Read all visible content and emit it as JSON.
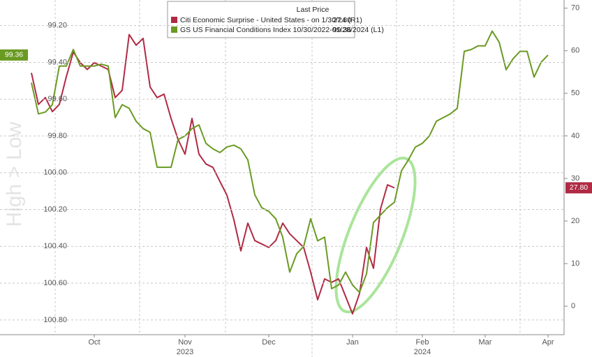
{
  "chart_data": {
    "type": "line",
    "watermark": "High > Low",
    "legend_title": "Last Price",
    "categories": [
      null,
      null,
      null,
      null,
      null,
      null,
      null,
      null,
      null,
      "Oct",
      null,
      null,
      null,
      null,
      null,
      null,
      null,
      null,
      null,
      null,
      null,
      null,
      "Nov",
      null,
      null,
      null,
      null,
      null,
      null,
      null,
      null,
      null,
      null,
      null,
      "Dec",
      null,
      null,
      null,
      null,
      null,
      null,
      null,
      null,
      null,
      null,
      null,
      "Jan",
      null,
      null,
      null,
      null,
      null,
      null,
      null,
      null,
      null,
      "Feb",
      null,
      null,
      null,
      null,
      null,
      null,
      null,
      null,
      "Mar",
      null,
      null,
      null,
      null,
      null,
      null,
      null,
      null,
      "Apr"
    ],
    "x_years": [
      null,
      null,
      null,
      null,
      null,
      null,
      null,
      null,
      null,
      null,
      null,
      null,
      null,
      null,
      null,
      null,
      null,
      null,
      null,
      null,
      null,
      null,
      "2023",
      null,
      null,
      null,
      null,
      null,
      null,
      null,
      null,
      null,
      null,
      null,
      null,
      null,
      null,
      null,
      null,
      null,
      null,
      null,
      null,
      null,
      null,
      null,
      null,
      null,
      null,
      null,
      null,
      null,
      null,
      null,
      null,
      null,
      "2024",
      null,
      null,
      null,
      null,
      null,
      null,
      null,
      null,
      null,
      null,
      null,
      null,
      null,
      null,
      null,
      null,
      null,
      null
    ],
    "ylim": [
      99.08,
      100.88
    ],
    "y_inverted": true,
    "yticks": [
      {
        "value": 99.2,
        "label": "99.20"
      },
      {
        "value": 99.4,
        "label": "99.40"
      },
      {
        "value": 99.6,
        "label": "99.60"
      },
      {
        "value": 99.8,
        "label": "99.80"
      },
      {
        "value": 100,
        "label": "100.00"
      },
      {
        "value": 100.2,
        "label": "100.20"
      },
      {
        "value": 100.4,
        "label": "100.40"
      },
      {
        "value": 100.6,
        "label": "100.60"
      },
      {
        "value": 100.8,
        "label": "100.80"
      }
    ],
    "y2lim": [
      -6.7,
      71.1
    ],
    "y2ticks": [
      0,
      10,
      20,
      30,
      40,
      50,
      60,
      70
    ],
    "grid": true,
    "series": [
      {
        "name": "Citi Economic Surprise - United States - on 1/30/24 (R1)",
        "last_value_label": "27.80",
        "color": "#b02a44",
        "axis": "y2",
        "values": [
          54.8,
          47.4,
          49,
          45.7,
          47.4,
          53.9,
          59.7,
          57.2,
          55.6,
          57.2,
          56.4,
          55.6,
          49,
          50.7,
          63.8,
          61.3,
          62.9,
          51.5,
          49,
          49.8,
          44.1,
          39.2,
          35.7,
          44.1,
          35.7,
          33.4,
          32.6,
          29.3,
          26.1,
          20.3,
          13,
          19.5,
          15.4,
          14.6,
          13.8,
          15.4,
          19.5,
          17,
          15.4,
          13.8,
          8,
          1.5,
          6.4,
          5.6,
          6.4,
          2.3,
          -1.8,
          3,
          13.8,
          8.9,
          22.8,
          28.5,
          27.8,
          null,
          null,
          null,
          null,
          null,
          null,
          null,
          null,
          null,
          null,
          null,
          null,
          null,
          null,
          null,
          null,
          null,
          null,
          null,
          null,
          null,
          null
        ]
      },
      {
        "name": "GS US Financial Conditions Index 10/30/2022-01/28/2024 (L1)",
        "last_value_label": "99.36",
        "color": "#6a9a22",
        "axis": "y",
        "values": [
          99.51,
          99.68,
          99.67,
          99.63,
          99.42,
          99.42,
          99.33,
          99.42,
          99.42,
          99.42,
          99.41,
          99.42,
          99.7,
          99.63,
          99.65,
          99.72,
          99.76,
          99.78,
          99.97,
          99.97,
          99.97,
          99.82,
          99.8,
          99.76,
          99.74,
          99.84,
          99.87,
          99.89,
          99.86,
          99.85,
          99.87,
          99.93,
          100.12,
          100.19,
          100.21,
          100.25,
          100.35,
          100.54,
          100.44,
          100.4,
          100.25,
          100.37,
          100.35,
          100.63,
          100.61,
          100.54,
          100.61,
          100.65,
          100.55,
          100.27,
          100.23,
          100.19,
          100.16,
          99.99,
          99.93,
          99.86,
          99.84,
          99.8,
          99.72,
          99.7,
          99.68,
          99.65,
          99.34,
          99.33,
          99.31,
          99.31,
          99.23,
          99.29,
          99.44,
          99.38,
          99.34,
          99.34,
          99.48,
          99.4,
          99.36
        ]
      }
    ]
  }
}
